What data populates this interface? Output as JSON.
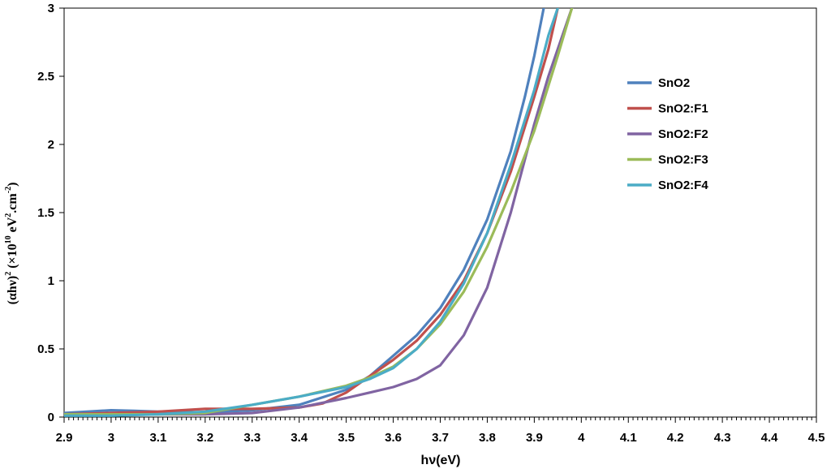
{
  "chart_data": {
    "type": "line",
    "xlabel": "hν(eV)",
    "ylabel": "(αhν)² (×10¹⁰ eV².cm⁻²)",
    "ylabel_parts": {
      "main": "(αhν)",
      "sup1": "2",
      "mid": " (×10",
      "sup2": "10",
      "mid2": " eV",
      "sup3": "2",
      "mid3": ".cm",
      "sup4": "-2",
      "end": ")"
    },
    "xlim": [
      2.9,
      4.5
    ],
    "ylim": [
      0,
      3
    ],
    "x_ticks": [
      "2.9",
      "3",
      "3.1",
      "3.2",
      "3.3",
      "3.4",
      "3.5",
      "3.6",
      "3.7",
      "3.8",
      "3.9",
      "4",
      "4.1",
      "4.2",
      "4.3",
      "4.4",
      "4.5"
    ],
    "y_ticks": [
      "0",
      "0.5",
      "1",
      "1.5",
      "2",
      "2.5",
      "3"
    ],
    "grid": false,
    "legend_position": "right",
    "series": [
      {
        "name": "SnO2",
        "color": "#4F81BD",
        "x": [
          2.9,
          3.0,
          3.05,
          3.1,
          3.2,
          3.3,
          3.4,
          3.5,
          3.55,
          3.6,
          3.65,
          3.7,
          3.75,
          3.8,
          3.85,
          3.88,
          3.9,
          3.92
        ],
        "y": [
          0.03,
          0.05,
          0.045,
          0.04,
          0.035,
          0.05,
          0.09,
          0.2,
          0.3,
          0.45,
          0.6,
          0.8,
          1.08,
          1.45,
          1.95,
          2.35,
          2.65,
          3.0
        ]
      },
      {
        "name": "SnO2:F1",
        "color": "#C0504D",
        "x": [
          2.9,
          3.0,
          3.1,
          3.2,
          3.3,
          3.4,
          3.45,
          3.5,
          3.55,
          3.6,
          3.65,
          3.7,
          3.75,
          3.8,
          3.85,
          3.9,
          3.93,
          3.95
        ],
        "y": [
          0.02,
          0.03,
          0.04,
          0.06,
          0.06,
          0.07,
          0.1,
          0.18,
          0.3,
          0.42,
          0.56,
          0.75,
          1.0,
          1.35,
          1.8,
          2.35,
          2.7,
          3.0
        ]
      },
      {
        "name": "SnO2:F2",
        "color": "#8064A2",
        "x": [
          2.9,
          3.0,
          3.1,
          3.2,
          3.3,
          3.4,
          3.5,
          3.55,
          3.6,
          3.65,
          3.7,
          3.75,
          3.8,
          3.85,
          3.9,
          3.93,
          3.96,
          3.98
        ],
        "y": [
          0.02,
          0.02,
          0.02,
          0.02,
          0.03,
          0.07,
          0.14,
          0.18,
          0.22,
          0.28,
          0.38,
          0.6,
          0.95,
          1.5,
          2.15,
          2.5,
          2.8,
          3.0
        ]
      },
      {
        "name": "SnO2:F3",
        "color": "#9BBB59",
        "x": [
          2.9,
          3.0,
          3.1,
          3.2,
          3.3,
          3.4,
          3.5,
          3.55,
          3.6,
          3.65,
          3.7,
          3.75,
          3.8,
          3.85,
          3.9,
          3.95,
          3.98
        ],
        "y": [
          0.02,
          0.02,
          0.02,
          0.03,
          0.09,
          0.15,
          0.23,
          0.29,
          0.37,
          0.5,
          0.68,
          0.92,
          1.25,
          1.65,
          2.1,
          2.65,
          3.0
        ]
      },
      {
        "name": "SnO2:F4",
        "color": "#4BACC6",
        "x": [
          2.9,
          3.0,
          3.1,
          3.2,
          3.3,
          3.4,
          3.5,
          3.55,
          3.6,
          3.65,
          3.7,
          3.75,
          3.8,
          3.85,
          3.9,
          3.93,
          3.95
        ],
        "y": [
          0.01,
          0.01,
          0.02,
          0.04,
          0.09,
          0.15,
          0.22,
          0.28,
          0.36,
          0.5,
          0.7,
          0.98,
          1.35,
          1.85,
          2.4,
          2.8,
          3.0
        ]
      }
    ]
  }
}
